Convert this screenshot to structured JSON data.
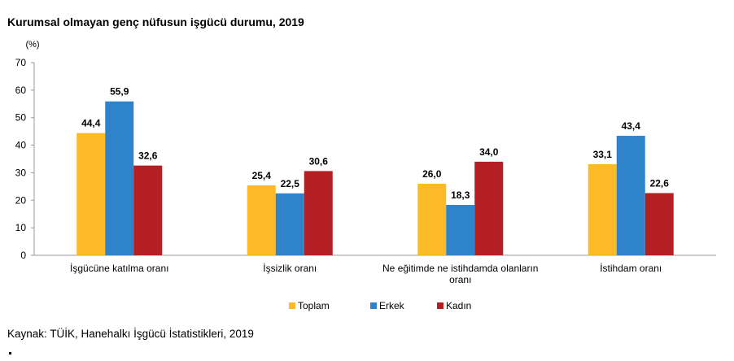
{
  "title": "Kurumsal olmayan genç nüfusun işgücü durumu, 2019",
  "source": "Kaynak: TÜİK, Hanehalkı İşgücü İstatistikleri, 2019",
  "colors": {
    "Toplam": "#FDBA27",
    "Erkek": "#2F83CB",
    "Kadın": "#B31F23"
  },
  "chart_data": {
    "type": "bar",
    "title": "Kurumsal olmayan genç nüfusun işgücü durumu, 2019",
    "unit": "(%)",
    "categories": [
      [
        "İşgücüne katılma oranı"
      ],
      [
        "İşsizlik oranı"
      ],
      [
        "Ne eğitimde ne istihdamda olanların",
        "oranı"
      ],
      [
        "İstihdam oranı"
      ]
    ],
    "series": [
      {
        "name": "Toplam",
        "values": [
          44.4,
          25.4,
          26.0,
          33.1
        ],
        "labels": [
          "44,4",
          "25,4",
          "26,0",
          "33,1"
        ]
      },
      {
        "name": "Erkek",
        "values": [
          55.9,
          22.5,
          18.3,
          43.4
        ],
        "labels": [
          "55,9",
          "22,5",
          "18,3",
          "43,4"
        ]
      },
      {
        "name": "Kadın",
        "values": [
          32.6,
          30.6,
          34.0,
          22.6
        ],
        "labels": [
          "32,6",
          "30,6",
          "34,0",
          "22,6"
        ]
      }
    ],
    "ylim": [
      0,
      70
    ],
    "yticks": [
      0,
      10,
      20,
      30,
      40,
      50,
      60,
      70
    ],
    "grid": false,
    "legend": "bottom-center"
  }
}
